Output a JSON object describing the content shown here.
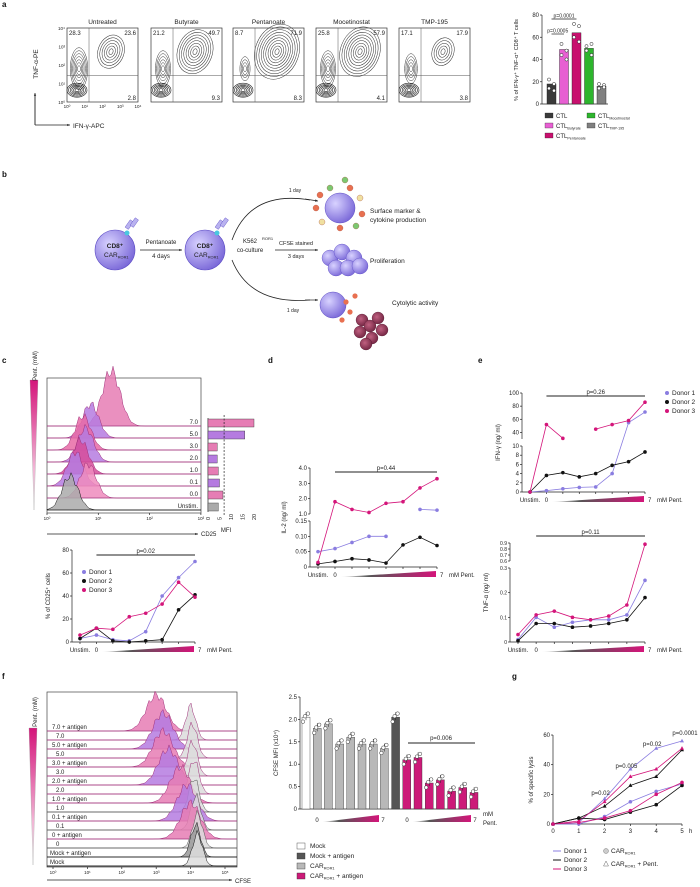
{
  "panel_labels": {
    "a": "a",
    "b": "b",
    "c": "c",
    "d": "d",
    "e": "e",
    "f": "f",
    "g": "g"
  },
  "panel_a": {
    "plots": [
      {
        "title": "Untreated",
        "ul": "28.3",
        "ur": "23.6",
        "lr": "2.8"
      },
      {
        "title": "Butyrate",
        "ul": "21.2",
        "ur": "49.7",
        "lr": "9.3"
      },
      {
        "title": "Pentanoate",
        "ul": "8.7",
        "ur": "71.9",
        "lr": "8.3"
      },
      {
        "title": "Mocetinostat",
        "ul": "25.8",
        "ur": "57.9",
        "lr": "4.1"
      },
      {
        "title": "TMP-195",
        "ul": "17.1",
        "ur": "17.9",
        "lr": "3.8"
      }
    ],
    "y_axis_label": "TNF-α-PE",
    "x_axis_label": "IFN-γ-APC",
    "ticks": [
      "10⁰",
      "10¹",
      "10²",
      "10³",
      "10⁴"
    ]
  },
  "panel_b": {
    "cell_top": "CD8⁺",
    "cell_bottom": "CAR",
    "cell_sub": "ROR1",
    "step1_top": "Pentanoate",
    "step1_bottom": "4 days",
    "step2_top": "K562",
    "step2_sup": "ROR1",
    "step2_bottom": "co-culture",
    "cfse_top": "CFSE stained",
    "cfse_bottom": "3 days",
    "day1": "1 day",
    "day2": "1 day",
    "out1_a": "Surface marker &",
    "out1_b": "cytokine production",
    "out2": "Proliferation",
    "out3": "Cytolytic activity"
  },
  "colors": {
    "donor1": "#8a7de0",
    "donor2": "#111111",
    "donor3": "#d4157a",
    "pink": "#e67db4",
    "purple": "#b57be0",
    "magenta": "#cc1a78",
    "gray": "#b8b8b8"
  },
  "chart_data": [
    {
      "id": "a_bar",
      "type": "bar",
      "ylabel": "% of IFN-γ⁺ TNF-α⁺ CD8⁺ T cells",
      "ylim": [
        0,
        80
      ],
      "yticks": [
        0,
        20,
        40,
        60,
        80
      ],
      "categories": [
        {
          "base": "CTL",
          "sub": ""
        },
        {
          "base": "CTL",
          "sub": "Butyrate"
        },
        {
          "base": "CTL",
          "sub": "Pentanoate"
        },
        {
          "base": "CTL",
          "sub": "Mocetinostat"
        },
        {
          "base": "CTL",
          "sub": "TMP-195"
        }
      ],
      "values": [
        18,
        49,
        64,
        50,
        16
      ],
      "points": [
        [
          14,
          18,
          22,
          12
        ],
        [
          44,
          48,
          54,
          40
        ],
        [
          60,
          70,
          72,
          56
        ],
        [
          48,
          54,
          52,
          44
        ],
        [
          14,
          17,
          18,
          15
        ]
      ],
      "colors": [
        "#3a3a3a",
        "#e75fd2",
        "#c8106e",
        "#2db52d",
        "#808080"
      ],
      "pvalues": [
        {
          "label": "p=0.0001",
          "from": 0,
          "to": 2
        },
        {
          "label": "p=0.0005",
          "from": 0,
          "to": 1
        }
      ]
    },
    {
      "id": "c_hist",
      "type": "histogram",
      "ylabel": "Pent. (mM)",
      "xlabel": "CD25",
      "xticks": [
        "10⁰",
        "10¹",
        "10²",
        "10³"
      ],
      "rows": [
        "7.0",
        "5.0",
        "3.0",
        "2.0",
        "1.0",
        "0.1",
        "0.0",
        "Unstim."
      ],
      "peaks_log10": [
        1.25,
        0.85,
        0.7,
        0.75,
        0.65,
        0.55,
        0.8,
        0.45
      ]
    },
    {
      "id": "c_mfi",
      "type": "bar",
      "xlabel": "MFI",
      "xticks": [
        0,
        5,
        10,
        15,
        20
      ],
      "categories": [
        "7.0",
        "5.0",
        "3.0",
        "2.0",
        "1.0",
        "0.1",
        "0.0",
        "Unstim."
      ],
      "values": [
        20,
        16,
        4,
        4,
        4.5,
        5,
        6.5,
        4.5
      ],
      "threshold": 7
    },
    {
      "id": "c_line",
      "type": "line",
      "ylabel": "% of CD25⁺ cells",
      "x": [
        "Unstim.",
        "0",
        "0.1",
        "1",
        "2",
        "3",
        "5",
        "7"
      ],
      "x_label_first": "Unstim.",
      "x_label_zero": "0",
      "x_label_last": "7",
      "x_unit": "mM Pent.",
      "y_segments": [
        [
          0,
          80
        ]
      ],
      "yticks": [
        [
          0,
          20,
          40,
          60,
          80
        ]
      ],
      "pvalue": "p=0.02",
      "series": [
        {
          "name": "Donor 1",
          "values": [
            3,
            6,
            2,
            1,
            9,
            40,
            56,
            70
          ]
        },
        {
          "name": "Donor 2",
          "values": [
            3,
            12,
            1,
            0,
            1,
            2,
            28,
            41
          ]
        },
        {
          "name": "Donor 3",
          "values": [
            6,
            12,
            11,
            22,
            25,
            33,
            52,
            39
          ]
        }
      ]
    },
    {
      "id": "d_il2",
      "type": "line",
      "ylabel": "IL-2 (ng/ ml)",
      "x": [
        "Unstim.",
        "0",
        "0.1",
        "1",
        "2",
        "3",
        "5",
        "7"
      ],
      "x_label_first": "Unstim.",
      "x_label_zero": "0",
      "x_label_last": "7",
      "x_unit": "mM Pent.",
      "y_segments": [
        [
          0,
          0.15
        ],
        [
          1,
          4
        ]
      ],
      "yticks": [
        [
          0,
          0.05,
          0.1,
          0.15
        ],
        [
          1,
          2,
          3,
          4
        ]
      ],
      "tick_labels": [
        [
          "0",
          "0.05",
          "0.10",
          "0.15"
        ],
        [
          "1.0",
          "2.0",
          "3.0",
          "4.0"
        ]
      ],
      "pvalue": "p=0.44",
      "series": [
        {
          "name": "Donor 1",
          "values": [
            0.05,
            0.06,
            0.08,
            0.1,
            0.1,
            null,
            1.3,
            1.25
          ]
        },
        {
          "name": "Donor 2",
          "values": [
            0.01,
            0.018,
            0.027,
            0.023,
            0.013,
            0.072,
            0.097,
            0.07
          ]
        },
        {
          "name": "Donor 3",
          "values": [
            0.015,
            1.8,
            1.3,
            1.1,
            1.7,
            1.8,
            2.7,
            3.3
          ]
        }
      ]
    },
    {
      "id": "e_ifn",
      "type": "line",
      "ylabel": "IFN-γ (ng/ ml)",
      "x": [
        "Unstim.",
        "0",
        "0.1",
        "1",
        "2",
        "3",
        "5",
        "7"
      ],
      "x_label_first": "Unstim.",
      "x_label_zero": "0",
      "x_label_last": "7",
      "x_unit": "mM Pent.",
      "y_segments": [
        [
          0,
          10
        ],
        [
          30,
          100
        ]
      ],
      "yticks": [
        [
          0,
          2,
          4,
          6,
          8,
          10
        ],
        [
          40,
          60,
          80,
          100
        ]
      ],
      "pvalue": "p=0.26",
      "legend": [
        "Donor 1",
        "Donor 2",
        "Donor 3"
      ],
      "series": [
        {
          "name": "Donor 1",
          "values": [
            0,
            0.3,
            0.7,
            1.0,
            1.1,
            4.0,
            55,
            71
          ]
        },
        {
          "name": "Donor 2",
          "values": [
            0,
            3.6,
            4.2,
            3.3,
            4.0,
            5.8,
            6.6,
            8.7
          ]
        },
        {
          "name": "Donor 3",
          "values": [
            0,
            52,
            31,
            null,
            45,
            52,
            58,
            86
          ]
        }
      ]
    },
    {
      "id": "e_tnf",
      "type": "line",
      "ylabel": "TNF-α (ng/ ml)",
      "x": [
        "Unstim.",
        "0",
        "0.1",
        "1",
        "2",
        "3",
        "5",
        "7"
      ],
      "x_label_first": "Unstim.",
      "x_label_zero": "0",
      "x_label_last": "7",
      "x_unit": "mM Pent.",
      "y_segments": [
        [
          0,
          0.3
        ],
        [
          0.6,
          0.9
        ]
      ],
      "yticks": [
        [
          0,
          0.1,
          0.2,
          0.3
        ],
        [
          0.6,
          0.7,
          0.8,
          0.9
        ]
      ],
      "pvalue": "p=0.11",
      "series": [
        {
          "name": "Donor 1",
          "values": [
            0.01,
            0.1,
            0.06,
            0.08,
            0.09,
            0.09,
            0.11,
            0.25
          ]
        },
        {
          "name": "Donor 2",
          "values": [
            0.005,
            0.075,
            0.075,
            0.06,
            0.065,
            0.075,
            0.09,
            0.18
          ]
        },
        {
          "name": "Donor 3",
          "values": [
            0.03,
            0.11,
            0.125,
            0.1,
            0.09,
            0.105,
            0.15,
            0.88
          ]
        }
      ]
    },
    {
      "id": "f_hist",
      "type": "histogram",
      "ylabel": "Pent. (mM)",
      "xlabel": "CFSE",
      "xticks": [
        "10⁰",
        "10¹",
        "10²",
        "10³",
        "10⁴",
        "10⁵"
      ],
      "rows": [
        "7.0 + antigen",
        "7.0",
        "5.0 + antigen",
        "5.0",
        "3.0 + antigen",
        "3.0",
        "2.0 + antigen",
        "2.0",
        "1.0 + antigen",
        "1.0",
        "0.1 + antigen",
        "0.1",
        "0 + antigen",
        "0",
        "Mock + antigen",
        "Mock"
      ],
      "peaks_log10": [
        3.0,
        4.0,
        3.2,
        4.05,
        3.2,
        4.05,
        3.35,
        4.1,
        3.7,
        4.1,
        3.9,
        4.15,
        4.0,
        4.2,
        4.15,
        4.2
      ]
    },
    {
      "id": "f_bar",
      "type": "bar",
      "ylabel": "CFSE MFI (x10⁴)",
      "ylim": [
        0,
        2.5
      ],
      "yticks": [
        "0",
        "0.5",
        "1.0",
        "1.5",
        "2.0",
        "2.5"
      ],
      "groups": [
        "Mock",
        "CAR",
        "CAR",
        "CAR",
        "CAR",
        "CAR",
        "CAR",
        "CAR",
        "Mock + antigen",
        "CAR + antigen",
        "CAR + antigen",
        "CAR + antigen",
        "CAR + antigen",
        "CAR + antigen",
        "CAR + antigen",
        "CAR + antigen"
      ],
      "values": [
        2.05,
        1.8,
        1.9,
        1.45,
        1.6,
        1.45,
        1.45,
        1.35,
        2.05,
        1.1,
        1.15,
        0.58,
        0.65,
        0.4,
        0.48,
        0.37
      ],
      "pvalue": "p=0.006",
      "x_label_zero": "0",
      "x_label_last": "7",
      "x_unit_a": "mM",
      "x_unit_b": "Pent.",
      "legend": [
        {
          "base": "Mock",
          "sub": "",
          "tail": "",
          "color": "#ffffff"
        },
        {
          "base": "Mock + antigen",
          "sub": "",
          "tail": "",
          "color": "#555555"
        },
        {
          "base": "CAR",
          "sub": "ROR1",
          "tail": "",
          "color": "#b8b8b8"
        },
        {
          "base": "CAR",
          "sub": "ROR1",
          "tail": " + antigen",
          "color": "#cc1a78"
        }
      ]
    },
    {
      "id": "g_lysis",
      "type": "line",
      "ylabel": "% of specific lysis",
      "x": [
        0,
        1,
        2,
        3,
        4,
        5
      ],
      "x_unit": "h",
      "ylim": [
        0,
        60
      ],
      "yticks": [
        0,
        20,
        40,
        60
      ],
      "pvalues": [
        {
          "x": 2,
          "label": "p=0.02"
        },
        {
          "x": 3,
          "label": "p=0.005"
        },
        {
          "x": 4,
          "label": "p=0.02"
        },
        {
          "x": 5,
          "label": "p=0.0001"
        }
      ],
      "series": [
        {
          "name": "Donor 1",
          "condition": "CAR + Pent.",
          "values": [
            0,
            1,
            17,
            37,
            51,
            56
          ]
        },
        {
          "name": "Donor 2",
          "condition": "CAR + Pent.",
          "values": [
            0,
            4,
            12,
            26,
            32,
            50
          ]
        },
        {
          "name": "Donor 3",
          "condition": "CAR + Pent.",
          "values": [
            0,
            2,
            15,
            32,
            37,
            51
          ]
        },
        {
          "name": "Donor 1",
          "condition": "CAR",
          "values": [
            0,
            0,
            5,
            15,
            22,
            27
          ]
        },
        {
          "name": "Donor 2",
          "condition": "CAR",
          "values": [
            0,
            4,
            3,
            8,
            13,
            26
          ]
        },
        {
          "name": "Donor 3",
          "condition": "CAR",
          "values": [
            0,
            1,
            4,
            9,
            20,
            28
          ]
        }
      ],
      "legend_donors": [
        "Donor 1",
        "Donor 2",
        "Donor 3"
      ],
      "legend_markers": [
        {
          "base": "CAR",
          "sub": "ROR1",
          "tail": ""
        },
        {
          "base": "CAR",
          "sub": "ROR1",
          "tail": " + Pent."
        }
      ]
    }
  ]
}
